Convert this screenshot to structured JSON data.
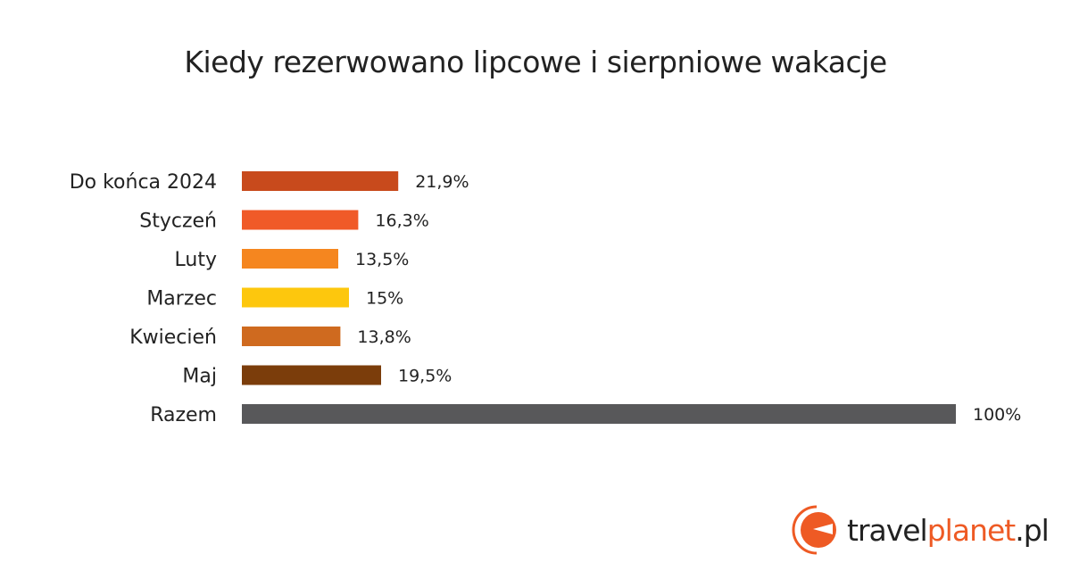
{
  "chart_data": {
    "type": "bar",
    "orientation": "horizontal",
    "title": "Kiedy rezerwowano lipcowe i sierpniowe wakacje",
    "categories": [
      "Do końca 2024",
      "Styczeń",
      "Luty",
      "Marzec",
      "Kwiecień",
      "Maj",
      "Razem"
    ],
    "values": [
      21.9,
      16.3,
      13.5,
      15,
      13.8,
      19.5,
      100
    ],
    "labels": [
      "21,9%",
      "16,3%",
      "13,5%",
      "15%",
      "13,8%",
      "19,5%",
      "100%"
    ],
    "colors": [
      "#c84a1c",
      "#f05a28",
      "#f5861f",
      "#fdc70d",
      "#cf6a1f",
      "#7b3d0b",
      "#58585a"
    ],
    "xlim": [
      0,
      100
    ],
    "xlabel": "",
    "ylabel": "",
    "grid": false
  },
  "logo": {
    "part1": "travel",
    "part2": "planet",
    "part3": ".pl"
  }
}
